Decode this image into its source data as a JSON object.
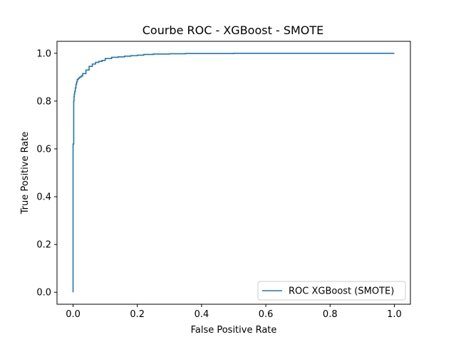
{
  "chart_data": {
    "type": "line",
    "title": "Courbe ROC - XGBoost - SMOTE",
    "xlabel": "False Positive Rate",
    "ylabel": "True Positive Rate",
    "xlim": [
      -0.05,
      1.05
    ],
    "ylim": [
      -0.05,
      1.05
    ],
    "xticks": [
      "0.0",
      "0.2",
      "0.4",
      "0.6",
      "0.8",
      "1.0"
    ],
    "yticks": [
      "0.0",
      "0.2",
      "0.4",
      "0.6",
      "0.8",
      "1.0"
    ],
    "grid": false,
    "legend_position": "lower-right",
    "series": [
      {
        "name": "ROC XGBoost (SMOTE)",
        "color": "#1f77b4",
        "x": [
          0.0,
          0.0,
          0.0,
          0.002,
          0.002,
          0.003,
          0.003,
          0.004,
          0.005,
          0.007,
          0.009,
          0.011,
          0.013,
          0.016,
          0.02,
          0.025,
          0.03,
          0.04,
          0.05,
          0.06,
          0.07,
          0.08,
          0.09,
          0.1,
          0.12,
          0.14,
          0.16,
          0.18,
          0.2,
          0.22,
          0.25,
          0.3,
          0.35,
          0.5,
          0.7,
          1.0
        ],
        "y": [
          0.0,
          0.3,
          0.62,
          0.63,
          0.8,
          0.81,
          0.82,
          0.83,
          0.84,
          0.855,
          0.87,
          0.88,
          0.89,
          0.895,
          0.9,
          0.905,
          0.915,
          0.93,
          0.945,
          0.955,
          0.962,
          0.966,
          0.97,
          0.978,
          0.983,
          0.985,
          0.988,
          0.99,
          0.992,
          0.995,
          0.997,
          0.998,
          0.999,
          1.0,
          1.0,
          1.0
        ]
      }
    ]
  }
}
